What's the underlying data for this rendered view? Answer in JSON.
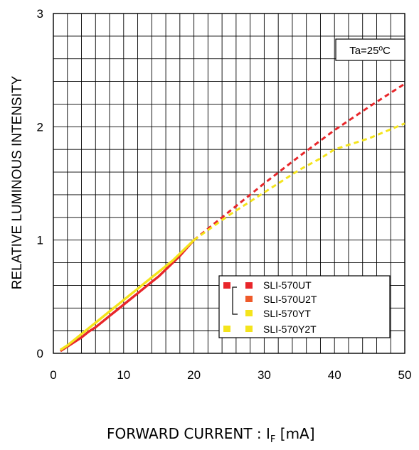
{
  "chart_data": {
    "type": "line",
    "ylabel": "RELATIVE LUMINOUS INTENSITY",
    "xlabel": {
      "prefix": "FORWARD CURRENT : I",
      "sub": "F",
      "suffix": " [mA]"
    },
    "annotation": "Ta=25ºC",
    "xlim": [
      0,
      50
    ],
    "ylim": [
      0,
      3
    ],
    "x_ticks": [
      0,
      10,
      20,
      30,
      40,
      50
    ],
    "x_tick_labels": [
      "0",
      "10",
      "20",
      "30",
      "40",
      "50"
    ],
    "y_ticks": [
      0,
      1,
      2,
      3
    ],
    "y_tick_labels": [
      "0",
      "1",
      "2",
      "3"
    ],
    "grid": true,
    "legend_position": "lower-right",
    "series": [
      {
        "name": "SLI-570UT",
        "color": "#e8262a",
        "solid_x": [
          1,
          2,
          3,
          4,
          5,
          6,
          7,
          8,
          9,
          10,
          11,
          12,
          13,
          14,
          15,
          16,
          17,
          18,
          19,
          20
        ],
        "solid_y": [
          0.02,
          0.06,
          0.1,
          0.14,
          0.19,
          0.23,
          0.28,
          0.33,
          0.38,
          0.43,
          0.48,
          0.53,
          0.58,
          0.63,
          0.68,
          0.74,
          0.8,
          0.86,
          0.93,
          1.0
        ],
        "dashed_x": [
          20,
          25,
          30,
          35,
          40,
          45,
          50
        ],
        "dashed_y": [
          1.0,
          1.25,
          1.5,
          1.74,
          1.97,
          2.18,
          2.38
        ]
      },
      {
        "name": "SLI-570U2T",
        "color": "#ef5a2a"
      },
      {
        "name": "SLI-570YT",
        "color": "#f4e41c",
        "solid_x": [
          1,
          2,
          3,
          4,
          5,
          6,
          7,
          8,
          9,
          10,
          11,
          12,
          13,
          14,
          15,
          16,
          17,
          18,
          19,
          20
        ],
        "solid_y": [
          0.03,
          0.07,
          0.12,
          0.17,
          0.22,
          0.27,
          0.32,
          0.37,
          0.42,
          0.47,
          0.52,
          0.57,
          0.62,
          0.67,
          0.72,
          0.77,
          0.82,
          0.88,
          0.94,
          1.0
        ],
        "dashed_x": [
          20,
          25,
          30,
          35,
          38,
          40,
          45,
          50
        ],
        "dashed_y": [
          1.0,
          1.22,
          1.42,
          1.62,
          1.72,
          1.8,
          1.9,
          2.03
        ]
      },
      {
        "name": "SLI-570Y2T",
        "color": "#f4e41c"
      }
    ]
  },
  "colors": {
    "grid": "#000000",
    "legend_bracket": "#000000"
  }
}
